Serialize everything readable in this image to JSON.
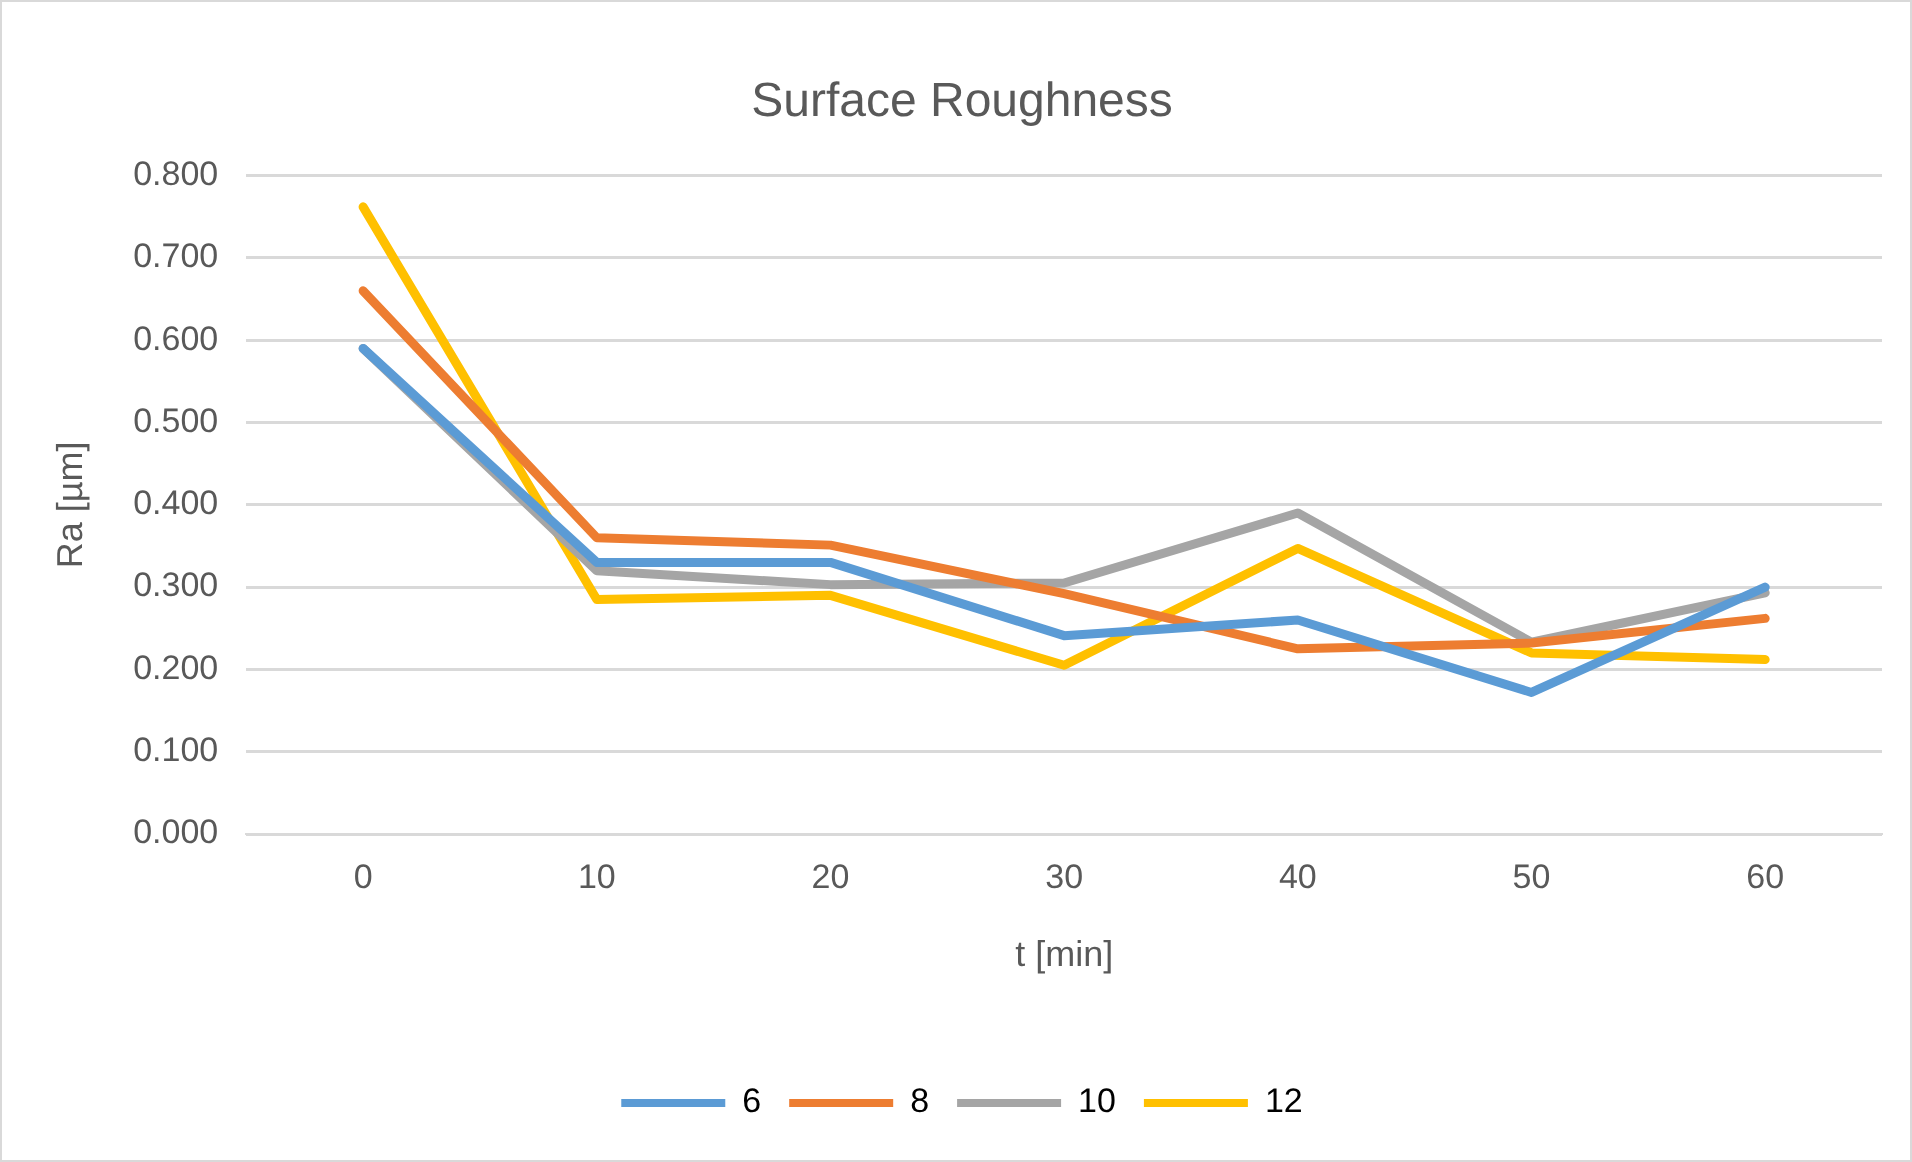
{
  "chart_data": {
    "type": "line",
    "title": "Surface Roughness",
    "xlabel": "t [min]",
    "ylabel": "Ra [µm]",
    "categories": [
      "0",
      "10",
      "20",
      "30",
      "40",
      "50",
      "60"
    ],
    "series": [
      {
        "name": "6",
        "color": "#5b9bd5",
        "values": [
          0.59,
          0.33,
          0.33,
          0.241,
          0.26,
          0.172,
          0.3
        ]
      },
      {
        "name": "8",
        "color": "#ed7d31",
        "values": [
          0.66,
          0.36,
          0.351,
          0.292,
          0.225,
          0.232,
          0.262
        ]
      },
      {
        "name": "10",
        "color": "#a5a5a5",
        "values": [
          0.59,
          0.32,
          0.303,
          0.305,
          0.39,
          0.233,
          0.293
        ]
      },
      {
        "name": "12",
        "color": "#ffc000",
        "values": [
          0.762,
          0.285,
          0.29,
          0.205,
          0.347,
          0.22,
          0.212
        ]
      }
    ],
    "ylim": [
      0,
      0.8
    ],
    "yticks": [
      {
        "value": 0,
        "label": "0.000"
      },
      {
        "value": 0.1,
        "label": "0.100"
      },
      {
        "value": 0.2,
        "label": "0.200"
      },
      {
        "value": 0.3,
        "label": "0.300"
      },
      {
        "value": 0.4,
        "label": "0.400"
      },
      {
        "value": 0.5,
        "label": "0.500"
      },
      {
        "value": 0.6,
        "label": "0.600"
      },
      {
        "value": 0.7,
        "label": "0.700"
      },
      {
        "value": 0.8,
        "label": "0.800"
      }
    ],
    "grid": "y",
    "legend": "bottom",
    "marker": "none",
    "line_style": "solid"
  }
}
